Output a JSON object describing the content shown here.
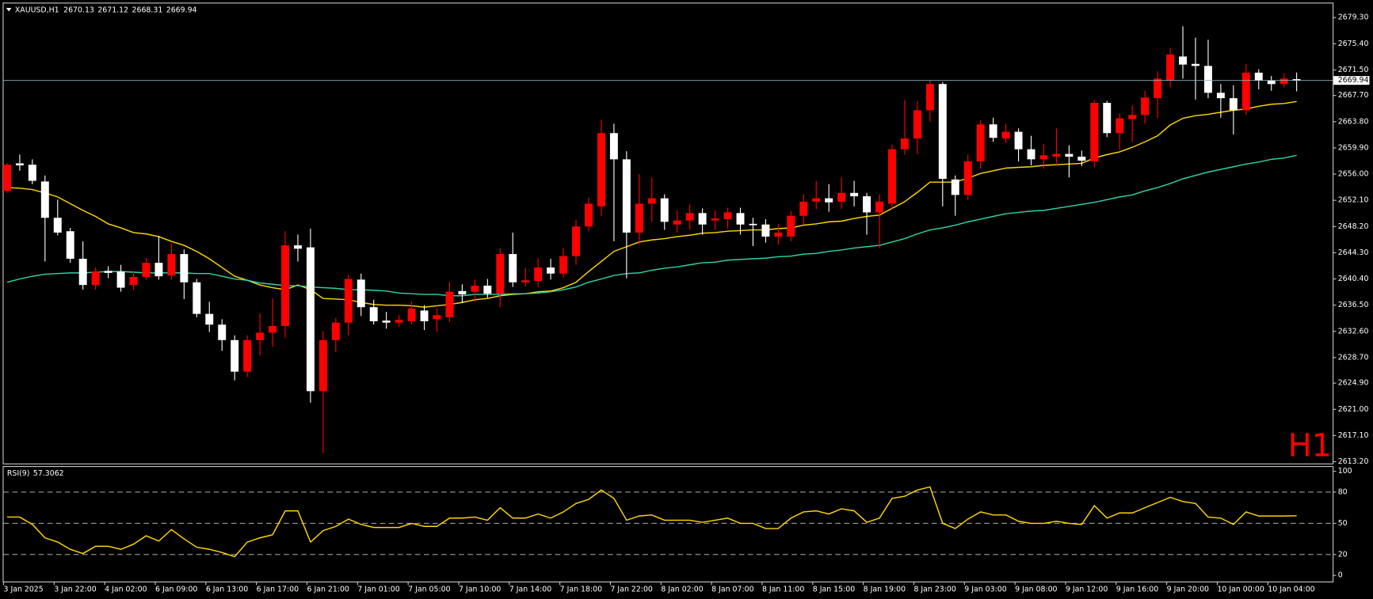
{
  "chart_data": [
    {
      "type": "candlestick",
      "symbol": "XAUUSD,H1",
      "watermark": "H1",
      "up_color": "#ff0000",
      "down_color": "#ffffff",
      "categories": [
        "3 Jan 2025",
        null,
        null,
        null,
        "3 Jan 22:00",
        null,
        null,
        null,
        "4 Jan 02:00",
        null,
        null,
        null,
        "6 Jan 09:00",
        null,
        null,
        null,
        "6 Jan 13:00",
        null,
        null,
        null,
        "6 Jan 17:00",
        null,
        null,
        null,
        "6 Jan 21:00",
        null,
        null,
        null,
        "7 Jan 01:00",
        null,
        null,
        null,
        "7 Jan 05:00",
        null,
        null,
        null,
        "7 Jan 10:00",
        null,
        null,
        null,
        "7 Jan 14:00",
        null,
        null,
        null,
        "7 Jan 18:00",
        null,
        null,
        null,
        "7 Jan 22:00",
        null,
        null,
        null,
        "8 Jan 02:00",
        null,
        null,
        null,
        "8 Jan 07:00",
        null,
        null,
        null,
        "8 Jan 11:00",
        null,
        null,
        null,
        "8 Jan 15:00",
        null,
        null,
        null,
        "8 Jan 19:00",
        null,
        null,
        null,
        "8 Jan 23:00",
        null,
        null,
        null,
        "9 Jan 03:00",
        null,
        null,
        null,
        "9 Jan 08:00",
        null,
        null,
        null,
        "9 Jan 12:00",
        null,
        null,
        null,
        "9 Jan 16:00",
        null,
        null,
        null,
        "9 Jan 20:00",
        null,
        null,
        null,
        "10 Jan 00:00",
        null,
        null,
        null,
        "10 Jan 04:00",
        null,
        null
      ],
      "open": [
        2653.5,
        2657.6,
        2657.4,
        2654.9,
        2649.5,
        2647.5,
        2643.4,
        2639.5,
        2641.6,
        2641.5,
        2639.5,
        2640.7,
        2642.8,
        2640.9,
        2644.1,
        2639.9,
        2635.2,
        2633.6,
        2631.3,
        2626.6,
        2631.3,
        2632.4,
        2633.4,
        2645.4,
        2645.1,
        2623.7,
        2631.3,
        2633.9,
        2640.3,
        2636.2,
        2634.2,
        2633.9,
        2634.1,
        2635.7,
        2634.4,
        2634.7,
        2638.6,
        2638.5,
        2639.4,
        2638.2,
        2644.1,
        2639.9,
        2640.1,
        2642.1,
        2641.2,
        2643.8,
        2648.2,
        2651.2,
        2662.1,
        2658.2,
        2647.3,
        2651.6,
        2652.4,
        2648.5,
        2649.1,
        2650.2,
        2649.1,
        2649.3,
        2650.2,
        2648.6,
        2648.5,
        2646.7,
        2646.7,
        2649.8,
        2651.9,
        2652.4,
        2651.9,
        2653.2,
        2652.7,
        2650.3,
        2651.6,
        2659.7,
        2661.3,
        2665.5,
        2669.4,
        2655.2,
        2652.9,
        2657.9,
        2663.4,
        2661.3,
        2662.3,
        2659.7,
        2658.2,
        2658.6,
        2659.0,
        2658.6,
        2657.9,
        2666.6,
        2662.1,
        2664.2,
        2664.8,
        2667.3,
        2669.9,
        2673.5,
        2672.4,
        2672.1,
        2668.1,
        2667.3,
        2665.5,
        2671.1,
        2669.9,
        2669.4,
        2670.13
      ],
      "high": [
        2657.6,
        2658.9,
        2658.2,
        2655.8,
        2652.2,
        2648.0,
        2646.0,
        2642.1,
        2642.3,
        2642.5,
        2641.6,
        2643.5,
        2646.8,
        2645.7,
        2644.8,
        2640.4,
        2637.0,
        2634.4,
        2632.0,
        2632.0,
        2635.3,
        2637.5,
        2647.5,
        2647.0,
        2647.9,
        2632.6,
        2634.6,
        2641.0,
        2641.2,
        2637.3,
        2635.5,
        2635.0,
        2637.0,
        2636.5,
        2636.0,
        2640.0,
        2639.6,
        2640.3,
        2640.4,
        2645.0,
        2647.3,
        2642.0,
        2643.5,
        2643.4,
        2645.0,
        2649.2,
        2652.5,
        2664.1,
        2663.5,
        2659.4,
        2656.0,
        2655.5,
        2653.0,
        2650.6,
        2651.5,
        2650.9,
        2650.6,
        2651.0,
        2651.0,
        2649.5,
        2649.3,
        2648.6,
        2650.5,
        2653.0,
        2655.0,
        2654.5,
        2655.5,
        2655.0,
        2653.2,
        2653.0,
        2660.4,
        2667.0,
        2666.9,
        2670.0,
        2669.7,
        2655.8,
        2658.9,
        2664.0,
        2664.4,
        2663.5,
        2662.8,
        2661.7,
        2660.5,
        2662.8,
        2660.3,
        2659.5,
        2667.0,
        2666.9,
        2665.0,
        2666.2,
        2668.4,
        2671.3,
        2674.8,
        2678.0,
        2676.3,
        2676.0,
        2669.4,
        2669.2,
        2672.4,
        2671.6,
        2670.6,
        2671.0,
        2671.12
      ],
      "low": [
        2653.2,
        2656.5,
        2654.5,
        2643.0,
        2646.9,
        2642.8,
        2638.8,
        2638.8,
        2640.5,
        2638.5,
        2638.8,
        2640.3,
        2640.3,
        2640.3,
        2637.4,
        2634.7,
        2632.5,
        2629.7,
        2625.3,
        2625.8,
        2629.0,
        2630.3,
        2631.6,
        2643.0,
        2622.0,
        2614.5,
        2629.5,
        2632.0,
        2634.9,
        2633.6,
        2633.0,
        2633.3,
        2633.6,
        2632.8,
        2632.5,
        2634.0,
        2636.8,
        2637.0,
        2637.6,
        2636.2,
        2639.2,
        2639.3,
        2639.2,
        2640.3,
        2640.6,
        2642.5,
        2647.5,
        2649.8,
        2646.0,
        2640.5,
        2645.5,
        2648.9,
        2647.7,
        2647.3,
        2647.7,
        2647.0,
        2647.7,
        2647.9,
        2647.0,
        2645.3,
        2645.8,
        2645.5,
        2646.0,
        2648.5,
        2650.8,
        2650.4,
        2650.8,
        2651.2,
        2647.0,
        2645.0,
        2650.8,
        2658.9,
        2659.0,
        2663.8,
        2651.2,
        2649.8,
        2652.2,
        2656.8,
        2660.8,
        2660.6,
        2657.9,
        2657.3,
        2656.8,
        2657.2,
        2655.5,
        2657.2,
        2657.0,
        2661.5,
        2659.6,
        2660.8,
        2663.5,
        2664.3,
        2668.9,
        2670.2,
        2667.1,
        2667.3,
        2664.4,
        2661.9,
        2664.8,
        2668.6,
        2668.4,
        2668.9,
        2668.31
      ],
      "close": [
        2657.4,
        2657.3,
        2655.0,
        2649.5,
        2647.3,
        2643.4,
        2639.5,
        2641.5,
        2641.3,
        2639.1,
        2640.7,
        2642.8,
        2640.8,
        2644.1,
        2639.9,
        2635.2,
        2633.6,
        2631.3,
        2626.6,
        2631.3,
        2632.4,
        2633.4,
        2645.4,
        2644.9,
        2623.7,
        2631.3,
        2633.9,
        2640.4,
        2636.2,
        2634.1,
        2633.9,
        2634.3,
        2636.0,
        2634.1,
        2635.0,
        2638.5,
        2638.1,
        2639.4,
        2638.2,
        2644.1,
        2639.9,
        2640.2,
        2642.1,
        2641.2,
        2643.8,
        2648.2,
        2651.6,
        2662.1,
        2658.2,
        2647.3,
        2651.6,
        2652.4,
        2648.9,
        2649.1,
        2650.2,
        2648.5,
        2649.4,
        2650.3,
        2648.5,
        2648.4,
        2646.7,
        2647.3,
        2649.8,
        2651.9,
        2652.4,
        2651.8,
        2653.2,
        2652.7,
        2650.3,
        2651.9,
        2659.7,
        2661.3,
        2665.5,
        2669.4,
        2655.3,
        2652.9,
        2657.9,
        2663.4,
        2661.4,
        2662.3,
        2659.7,
        2658.2,
        2658.8,
        2659.0,
        2658.6,
        2658.0,
        2666.6,
        2662.1,
        2664.3,
        2664.8,
        2667.4,
        2670.2,
        2673.8,
        2672.3,
        2672.1,
        2668.1,
        2667.3,
        2665.5,
        2671.1,
        2669.9,
        2669.4,
        2670.2,
        2669.94
      ],
      "series": [
        {
          "color": "#ffd700",
          "values": [
            2654.0,
            2653.9,
            2653.7,
            2653.2,
            2652.6,
            2651.6,
            2650.6,
            2649.7,
            2648.6,
            2648.0,
            2647.3,
            2647.1,
            2646.7,
            2646.0,
            2645.4,
            2644.5,
            2643.4,
            2642.1,
            2640.8,
            2640.2,
            2639.5,
            2639.1,
            2638.8,
            2639.5,
            2638.8,
            2637.5,
            2637.4,
            2637.3,
            2636.9,
            2636.6,
            2636.5,
            2636.5,
            2636.4,
            2636.2,
            2636.4,
            2636.6,
            2636.9,
            2637.3,
            2637.5,
            2637.9,
            2638.1,
            2638.2,
            2638.5,
            2638.6,
            2639.1,
            2639.9,
            2641.5,
            2643.0,
            2644.5,
            2645.2,
            2645.9,
            2646.2,
            2646.4,
            2646.7,
            2646.9,
            2647.2,
            2647.3,
            2647.5,
            2647.6,
            2647.7,
            2647.7,
            2647.9,
            2648.0,
            2648.4,
            2648.6,
            2648.9,
            2649.0,
            2649.4,
            2649.7,
            2649.9,
            2650.9,
            2651.9,
            2653.3,
            2654.8,
            2654.8,
            2654.8,
            2655.4,
            2656.1,
            2656.5,
            2656.9,
            2657.0,
            2657.1,
            2657.3,
            2657.4,
            2657.5,
            2657.6,
            2658.4,
            2658.9,
            2659.3,
            2660.0,
            2660.8,
            2661.7,
            2663.3,
            2664.3,
            2664.7,
            2664.9,
            2665.2,
            2665.5,
            2665.7,
            2666.1,
            2666.4,
            2666.5,
            2666.8
          ]
        },
        {
          "color": "#2ed3a8",
          "values": [
            2639.9,
            2640.4,
            2640.8,
            2641.1,
            2641.2,
            2641.3,
            2641.3,
            2641.4,
            2641.5,
            2641.5,
            2641.4,
            2641.3,
            2641.3,
            2641.3,
            2641.3,
            2641.2,
            2641.2,
            2640.8,
            2640.4,
            2640.2,
            2639.8,
            2639.6,
            2639.4,
            2639.4,
            2639.2,
            2639.1,
            2639.0,
            2638.8,
            2638.8,
            2638.7,
            2638.6,
            2638.3,
            2638.2,
            2638.1,
            2638.1,
            2637.9,
            2637.9,
            2638.1,
            2638.1,
            2638.1,
            2638.2,
            2638.2,
            2638.3,
            2638.5,
            2638.8,
            2639.2,
            2639.9,
            2640.4,
            2640.9,
            2641.2,
            2641.3,
            2641.7,
            2642.0,
            2642.2,
            2642.5,
            2642.8,
            2642.9,
            2643.2,
            2643.3,
            2643.4,
            2643.5,
            2643.7,
            2643.8,
            2644.1,
            2644.2,
            2644.5,
            2644.7,
            2645.0,
            2645.2,
            2645.4,
            2645.9,
            2646.4,
            2647.1,
            2647.7,
            2648.0,
            2648.4,
            2648.9,
            2649.3,
            2649.7,
            2650.1,
            2650.3,
            2650.5,
            2650.6,
            2650.9,
            2651.2,
            2651.5,
            2651.8,
            2652.2,
            2652.6,
            2652.9,
            2653.5,
            2654.0,
            2654.6,
            2655.3,
            2655.8,
            2656.3,
            2656.7,
            2657.1,
            2657.5,
            2657.8,
            2658.2,
            2658.4,
            2658.8
          ]
        }
      ],
      "ylim": [
        2612.94,
        2681.26
      ],
      "yticks": [
        {
          "value": 2679.3,
          "label": "2679.30"
        },
        {
          "value": 2675.4,
          "label": "2675.40"
        },
        {
          "value": 2671.5,
          "label": "2671.50"
        },
        {
          "value": 2667.7,
          "label": "2667.70"
        },
        {
          "value": 2663.8,
          "label": "2663.80"
        },
        {
          "value": 2659.9,
          "label": "2659.90"
        },
        {
          "value": 2656.0,
          "label": "2656.00"
        },
        {
          "value": 2652.1,
          "label": "2652.10"
        },
        {
          "value": 2648.2,
          "label": "2648.20"
        },
        {
          "value": 2644.3,
          "label": "2644.30"
        },
        {
          "value": 2640.4,
          "label": "2640.40"
        },
        {
          "value": 2636.5,
          "label": "2636.50"
        },
        {
          "value": 2632.6,
          "label": "2632.60"
        },
        {
          "value": 2628.7,
          "label": "2628.70"
        },
        {
          "value": 2624.9,
          "label": "2624.90"
        },
        {
          "value": 2621.0,
          "label": "2621.00"
        },
        {
          "value": 2617.1,
          "label": "2617.10"
        },
        {
          "value": 2613.2,
          "label": "2613.20"
        }
      ]
    },
    {
      "type": "line",
      "title": "RSI(9)",
      "color": "#ffd700",
      "values": [
        56,
        56,
        49,
        36,
        32,
        25,
        21,
        28,
        28,
        25,
        30,
        38,
        33,
        44,
        35,
        27,
        25,
        22,
        18,
        32,
        36,
        39,
        62,
        62,
        32,
        43,
        47,
        54,
        49,
        46,
        46,
        46,
        50,
        47,
        47,
        55,
        55,
        56,
        53,
        65,
        55,
        55,
        59,
        55,
        61,
        69,
        73,
        82,
        74,
        53,
        57,
        58,
        53,
        53,
        53,
        51,
        53,
        55,
        50,
        50,
        45,
        45,
        55,
        61,
        62,
        59,
        64,
        62,
        51,
        55,
        74,
        76,
        82,
        85,
        50,
        45,
        54,
        61,
        58,
        58,
        52,
        50,
        50,
        52,
        50,
        49,
        67,
        55,
        60,
        60,
        65,
        70,
        75,
        71,
        69,
        56,
        55,
        49,
        61,
        57,
        57,
        57,
        57.3062
      ],
      "ylim": [
        -5.9,
        105
      ],
      "yticks": [
        100,
        80,
        50,
        20,
        0
      ]
    }
  ]
}
